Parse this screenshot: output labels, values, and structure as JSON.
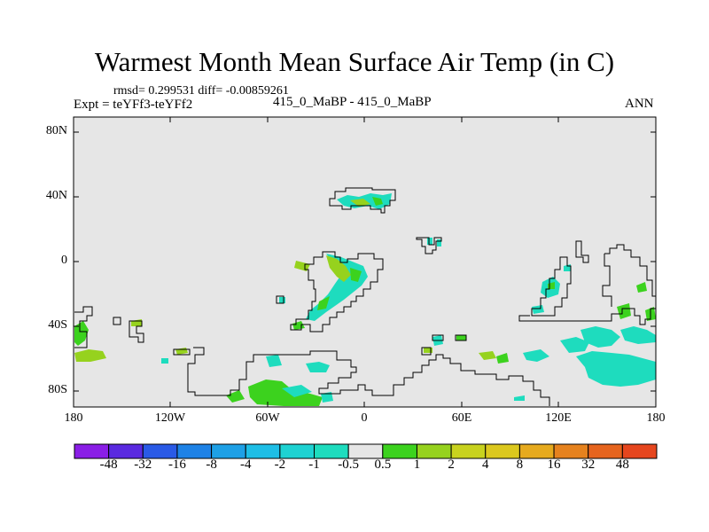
{
  "title": "Warmest Month Mean Surface Air Temp (in C)",
  "stats": "rmsd= 0.299531 diff= -0.00859261",
  "left_label": "Expt = teYFf3-teYFf2",
  "center_label": "415_0_MaBP - 415_0_MaBP",
  "right_label": "ANN",
  "y_ticks": [
    "80N",
    "40N",
    "0",
    "40S",
    "80S"
  ],
  "x_ticks": [
    "180",
    "120W",
    "60W",
    "0",
    "60E",
    "120E",
    "180"
  ],
  "colorbar": {
    "labels": [
      "-48",
      "-32",
      "-16",
      "-8",
      "-4",
      "-2",
      "-1",
      "-0.5",
      "0.5",
      "1",
      "2",
      "4",
      "8",
      "16",
      "32",
      "48"
    ],
    "colors": [
      "#8a1ee6",
      "#5a2ae0",
      "#2a5ae6",
      "#1e82e6",
      "#1ea0e6",
      "#1ebee6",
      "#1ed2d2",
      "#1edcbe",
      "#e6e6e6",
      "#3cd21e",
      "#96d21e",
      "#c8d21e",
      "#dcc81e",
      "#e6aa1e",
      "#e6821e",
      "#e6641e",
      "#e6461e"
    ]
  },
  "colors": {
    "background": "#e6e6e6",
    "cool": "#1edcbe",
    "warm": "#3cd21e",
    "warm2": "#96d21e"
  }
}
